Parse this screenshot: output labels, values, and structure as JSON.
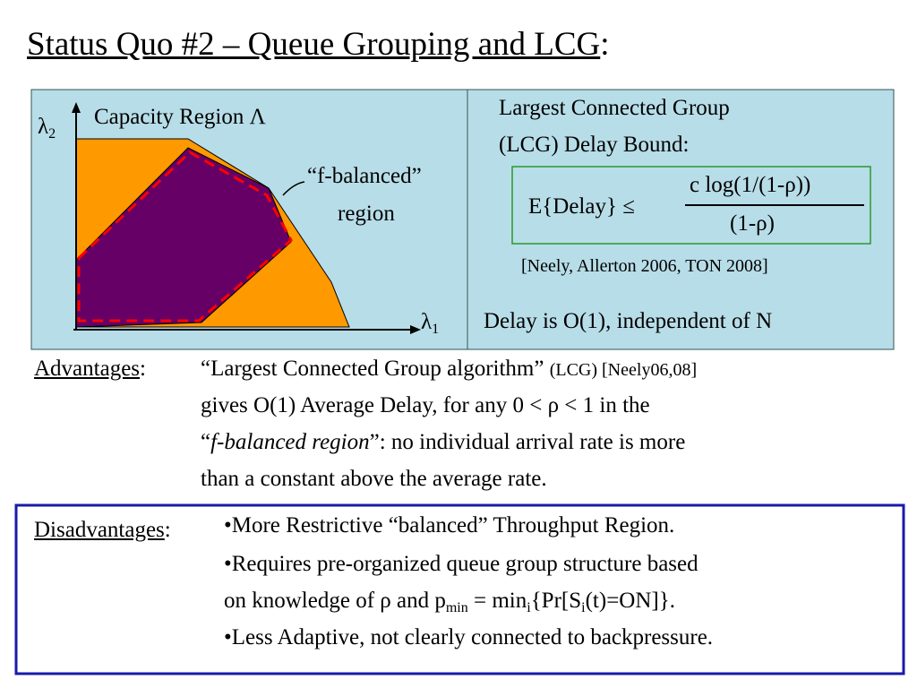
{
  "title": {
    "text": "Status Quo #2 – Queue Grouping and LCG",
    "suffix": ":"
  },
  "figure": {
    "y_axis": [
      "λ",
      "2"
    ],
    "region_label": "Capacity Region Λ",
    "f_label": [
      "“f-balanced”",
      "region"
    ],
    "x_axis": [
      "λ",
      "1"
    ]
  },
  "bound": {
    "heading": [
      "Largest Connected Group",
      "(LCG) Delay Bound:"
    ],
    "lhs": "E{Delay} ≤",
    "numerator": "c log(1/(1-ρ))",
    "denominator": "(1-ρ)",
    "citation": "[Neely, Allerton 2006, TON 2008]",
    "note": "Delay is O(1), independent of N"
  },
  "advantages": {
    "label": "Advantages",
    "separator": ":",
    "lines": [
      [
        "“Largest Connected Group algorithm” ",
        "(LCG) [Neely06,08]"
      ],
      [
        "gives O(1) Average Delay, for any 0 < ρ < 1 in the"
      ],
      [
        "“",
        "f-balanced region",
        "”: no individual arrival rate is more"
      ],
      [
        "than a constant above the average rate."
      ]
    ]
  },
  "disadvantages": {
    "label": "Disadvantages",
    "separator": ":",
    "lines": [
      [
        "•More Restrictive “balanced” Throughput Region."
      ],
      [
        "•Requires pre-organized queue group structure based"
      ],
      [
        "on knowledge of ρ and p",
        "min",
        " = min",
        "i",
        "{Pr[S",
        "i",
        "(t)=ON]}."
      ],
      [
        "•Less Adaptive, not clearly connected to backpressure."
      ]
    ]
  }
}
